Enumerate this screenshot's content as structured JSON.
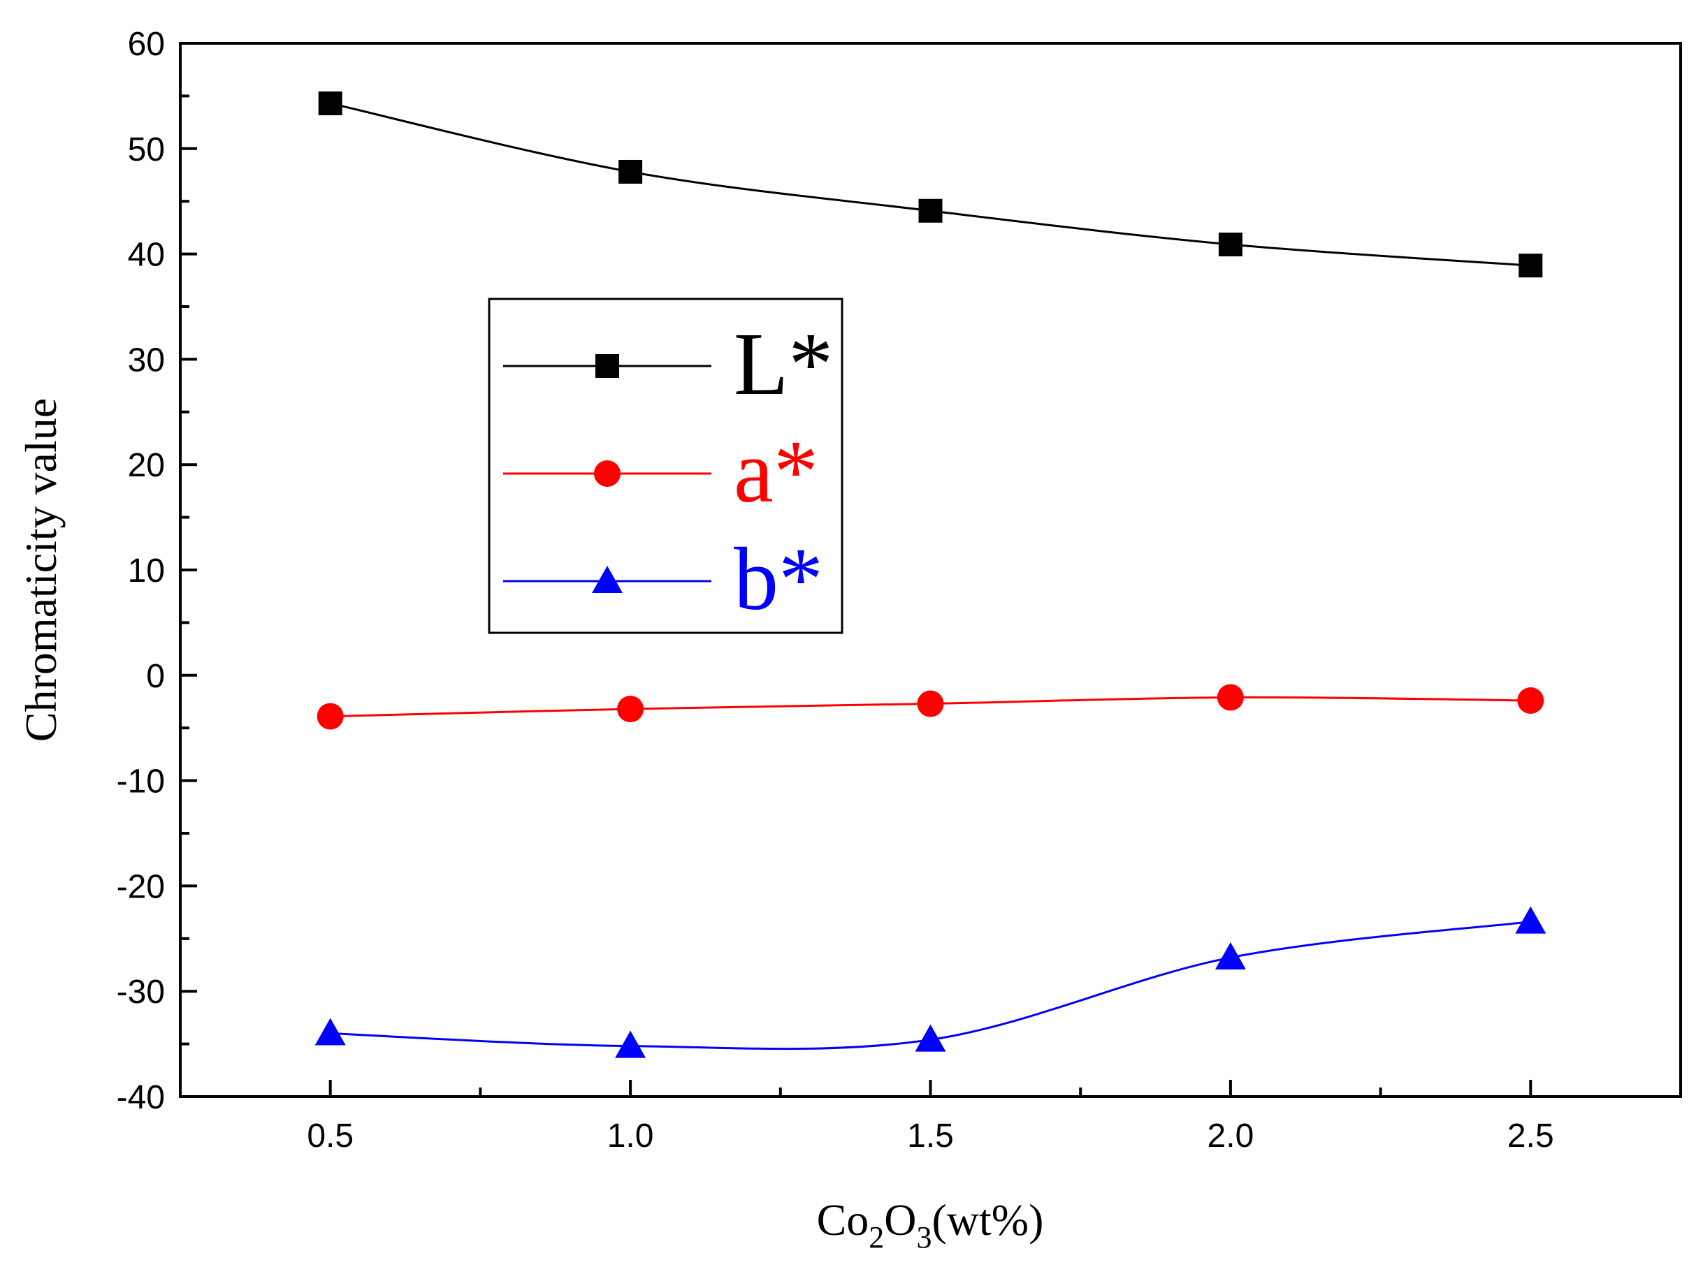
{
  "chart_data": {
    "type": "line",
    "title": "",
    "xlabel": {
      "main": "Co",
      "sub1": "2",
      "mid": "O",
      "sub2": "3",
      "tail": "(wt%)"
    },
    "ylabel": "Chromaticity value",
    "x": [
      0.5,
      1.0,
      1.5,
      2.0,
      2.5
    ],
    "xlim": [
      0.25,
      2.75
    ],
    "ylim": [
      -40,
      60
    ],
    "x_ticks": [
      "0.5",
      "1.0",
      "1.5",
      "2.0",
      "2.5"
    ],
    "y_ticks": [
      "60",
      "50",
      "40",
      "30",
      "20",
      "10",
      "0",
      "-10",
      "-20",
      "-30",
      "-40"
    ],
    "grid": false,
    "legend_position": "center-left",
    "series": [
      {
        "name": "L*",
        "marker": "square",
        "color": "#000000",
        "values": [
          54.3,
          47.8,
          44.1,
          40.9,
          38.9
        ]
      },
      {
        "name": "a*",
        "marker": "circle",
        "color": "#ff0000",
        "values": [
          -3.9,
          -3.2,
          -2.7,
          -2.1,
          -2.4
        ]
      },
      {
        "name": "b*",
        "marker": "triangle",
        "color": "#0000ff",
        "values": [
          -34.0,
          -35.2,
          -34.6,
          -26.8,
          -23.4
        ]
      }
    ]
  }
}
